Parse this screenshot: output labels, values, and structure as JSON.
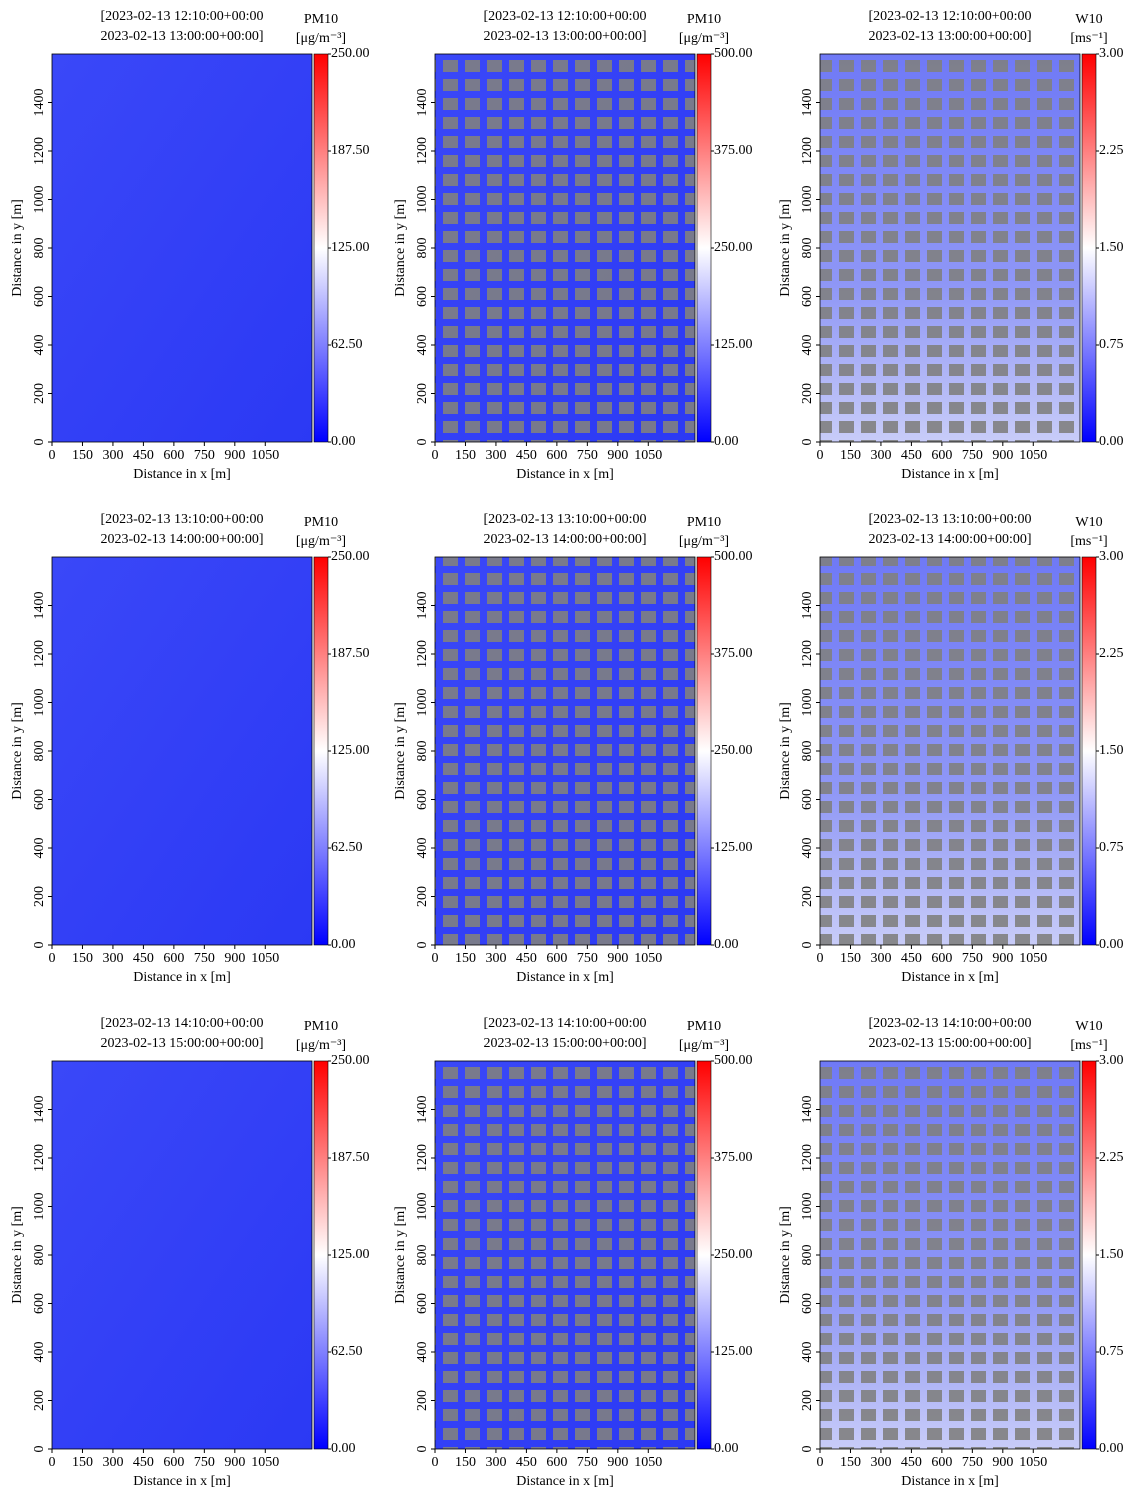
{
  "chart_data": [
    {
      "type": "heatmap",
      "title": [
        "[2023-02-13 12:10:00+00:00",
        "2023-02-13 13:00:00+00:00]"
      ],
      "xlabel": "Distance in x [m]",
      "ylabel": "Distance in y [m]",
      "xlim": [
        0,
        1280
      ],
      "ylim": [
        0,
        1600
      ],
      "xticks": [
        0,
        150,
        300,
        450,
        600,
        750,
        900,
        1050
      ],
      "yticks": [
        0,
        200,
        400,
        600,
        800,
        1000,
        1200,
        1400
      ],
      "colormap": [
        "#0000ff",
        "#ffffff",
        "#ff0000"
      ],
      "colorbar": {
        "label": "PM10",
        "unit": "[μg/m⁻³]",
        "lim": [
          0,
          250
        ],
        "ticks": [
          {
            "value": 0,
            "label": "0.00"
          },
          {
            "value": 62.5,
            "label": "62.50"
          },
          {
            "value": 125,
            "label": "125.00"
          },
          {
            "value": 187.5,
            "label": "187.50"
          },
          {
            "value": 250,
            "label": "250.00"
          }
        ]
      }
    },
    {
      "type": "heatmap",
      "title": [
        "[2023-02-13 12:10:00+00:00",
        "2023-02-13 13:00:00+00:00]"
      ],
      "xlabel": "Distance in x [m]",
      "ylabel": "Distance in y [m]",
      "xlim": [
        0,
        1280
      ],
      "ylim": [
        0,
        1600
      ],
      "xticks": [
        0,
        150,
        300,
        450,
        600,
        750,
        900,
        1050
      ],
      "yticks": [
        0,
        200,
        400,
        600,
        800,
        1000,
        1200,
        1400
      ],
      "colormap": [
        "#0000ff",
        "#ffffff",
        "#ff0000"
      ],
      "colorbar": {
        "label": "PM10",
        "unit": "[μg/m⁻³]",
        "lim": [
          0,
          500
        ],
        "ticks": [
          {
            "value": 0,
            "label": "0.00"
          },
          {
            "value": 125,
            "label": "125.00"
          },
          {
            "value": 250,
            "label": "250.00"
          },
          {
            "value": 375,
            "label": "375.00"
          },
          {
            "value": 500,
            "label": "500.00"
          }
        ]
      }
    },
    {
      "type": "heatmap",
      "title": [
        "[2023-02-13 12:10:00+00:00",
        "2023-02-13 13:00:00+00:00]"
      ],
      "xlabel": "Distance in x [m]",
      "ylabel": "Distance in y [m]",
      "xlim": [
        0,
        1280
      ],
      "ylim": [
        0,
        1600
      ],
      "xticks": [
        0,
        150,
        300,
        450,
        600,
        750,
        900,
        1050
      ],
      "yticks": [
        0,
        200,
        400,
        600,
        800,
        1000,
        1200,
        1400
      ],
      "colormap": [
        "#0000ff",
        "#ffffff",
        "#ff0000"
      ],
      "colorbar": {
        "label": "W10",
        "unit": "[ms⁻¹]",
        "lim": [
          0,
          3
        ],
        "ticks": [
          {
            "value": 0,
            "label": "0.00"
          },
          {
            "value": 0.75,
            "label": "0.75"
          },
          {
            "value": 1.5,
            "label": "1.50"
          },
          {
            "value": 2.25,
            "label": "2.25"
          },
          {
            "value": 3,
            "label": "3.00"
          }
        ]
      }
    },
    {
      "type": "heatmap",
      "title": [
        "[2023-02-13 13:10:00+00:00",
        "2023-02-13 14:00:00+00:00]"
      ],
      "xlabel": "Distance in x [m]",
      "ylabel": "Distance in y [m]",
      "xlim": [
        0,
        1280
      ],
      "ylim": [
        0,
        1600
      ],
      "xticks": [
        0,
        150,
        300,
        450,
        600,
        750,
        900,
        1050
      ],
      "yticks": [
        0,
        200,
        400,
        600,
        800,
        1000,
        1200,
        1400
      ],
      "colormap": [
        "#0000ff",
        "#ffffff",
        "#ff0000"
      ],
      "colorbar": {
        "label": "PM10",
        "unit": "[μg/m⁻³]",
        "lim": [
          0,
          250
        ],
        "ticks": [
          {
            "value": 0,
            "label": "0.00"
          },
          {
            "value": 62.5,
            "label": "62.50"
          },
          {
            "value": 125,
            "label": "125.00"
          },
          {
            "value": 187.5,
            "label": "187.50"
          },
          {
            "value": 250,
            "label": "250.00"
          }
        ]
      }
    },
    {
      "type": "heatmap",
      "title": [
        "[2023-02-13 13:10:00+00:00",
        "2023-02-13 14:00:00+00:00]"
      ],
      "xlabel": "Distance in x [m]",
      "ylabel": "Distance in y [m]",
      "xlim": [
        0,
        1280
      ],
      "ylim": [
        0,
        1600
      ],
      "xticks": [
        0,
        150,
        300,
        450,
        600,
        750,
        900,
        1050
      ],
      "yticks": [
        0,
        200,
        400,
        600,
        800,
        1000,
        1200,
        1400
      ],
      "colormap": [
        "#0000ff",
        "#ffffff",
        "#ff0000"
      ],
      "colorbar": {
        "label": "PM10",
        "unit": "[μg/m⁻³]",
        "lim": [
          0,
          500
        ],
        "ticks": [
          {
            "value": 0,
            "label": "0.00"
          },
          {
            "value": 125,
            "label": "125.00"
          },
          {
            "value": 250,
            "label": "250.00"
          },
          {
            "value": 375,
            "label": "375.00"
          },
          {
            "value": 500,
            "label": "500.00"
          }
        ]
      }
    },
    {
      "type": "heatmap",
      "title": [
        "[2023-02-13 13:10:00+00:00",
        "2023-02-13 14:00:00+00:00]"
      ],
      "xlabel": "Distance in x [m]",
      "ylabel": "Distance in y [m]",
      "xlim": [
        0,
        1280
      ],
      "ylim": [
        0,
        1600
      ],
      "xticks": [
        0,
        150,
        300,
        450,
        600,
        750,
        900,
        1050
      ],
      "yticks": [
        0,
        200,
        400,
        600,
        800,
        1000,
        1200,
        1400
      ],
      "colormap": [
        "#0000ff",
        "#ffffff",
        "#ff0000"
      ],
      "colorbar": {
        "label": "W10",
        "unit": "[ms⁻¹]",
        "lim": [
          0,
          3
        ],
        "ticks": [
          {
            "value": 0,
            "label": "0.00"
          },
          {
            "value": 0.75,
            "label": "0.75"
          },
          {
            "value": 1.5,
            "label": "1.50"
          },
          {
            "value": 2.25,
            "label": "2.25"
          },
          {
            "value": 3,
            "label": "3.00"
          }
        ]
      }
    },
    {
      "type": "heatmap",
      "title": [
        "[2023-02-13 14:10:00+00:00",
        "2023-02-13 15:00:00+00:00]"
      ],
      "xlabel": "Distance in x [m]",
      "ylabel": "Distance in y [m]",
      "xlim": [
        0,
        1280
      ],
      "ylim": [
        0,
        1600
      ],
      "xticks": [
        0,
        150,
        300,
        450,
        600,
        750,
        900,
        1050
      ],
      "yticks": [
        0,
        200,
        400,
        600,
        800,
        1000,
        1200,
        1400
      ],
      "colormap": [
        "#0000ff",
        "#ffffff",
        "#ff0000"
      ],
      "colorbar": {
        "label": "PM10",
        "unit": "[μg/m⁻³]",
        "lim": [
          0,
          250
        ],
        "ticks": [
          {
            "value": 0,
            "label": "0.00"
          },
          {
            "value": 62.5,
            "label": "62.50"
          },
          {
            "value": 125,
            "label": "125.00"
          },
          {
            "value": 187.5,
            "label": "187.50"
          },
          {
            "value": 250,
            "label": "250.00"
          }
        ]
      }
    },
    {
      "type": "heatmap",
      "title": [
        "[2023-02-13 14:10:00+00:00",
        "2023-02-13 15:00:00+00:00]"
      ],
      "xlabel": "Distance in x [m]",
      "ylabel": "Distance in y [m]",
      "xlim": [
        0,
        1280
      ],
      "ylim": [
        0,
        1600
      ],
      "xticks": [
        0,
        150,
        300,
        450,
        600,
        750,
        900,
        1050
      ],
      "yticks": [
        0,
        200,
        400,
        600,
        800,
        1000,
        1200,
        1400
      ],
      "colormap": [
        "#0000ff",
        "#ffffff",
        "#ff0000"
      ],
      "colorbar": {
        "label": "PM10",
        "unit": "[μg/m⁻³]",
        "lim": [
          0,
          500
        ],
        "ticks": [
          {
            "value": 0,
            "label": "0.00"
          },
          {
            "value": 125,
            "label": "125.00"
          },
          {
            "value": 250,
            "label": "250.00"
          },
          {
            "value": 375,
            "label": "375.00"
          },
          {
            "value": 500,
            "label": "500.00"
          }
        ]
      }
    },
    {
      "type": "heatmap",
      "title": [
        "[2023-02-13 14:10:00+00:00",
        "2023-02-13 15:00:00+00:00]"
      ],
      "xlabel": "Distance in x [m]",
      "ylabel": "Distance in y [m]",
      "xlim": [
        0,
        1280
      ],
      "ylim": [
        0,
        1600
      ],
      "xticks": [
        0,
        150,
        300,
        450,
        600,
        750,
        900,
        1050
      ],
      "yticks": [
        0,
        200,
        400,
        600,
        800,
        1000,
        1200,
        1400
      ],
      "colormap": [
        "#0000ff",
        "#ffffff",
        "#ff0000"
      ],
      "colorbar": {
        "label": "W10",
        "unit": "[ms⁻¹]",
        "lim": [
          0,
          3
        ],
        "ticks": [
          {
            "value": 0,
            "label": "0.00"
          },
          {
            "value": 0.75,
            "label": "0.75"
          },
          {
            "value": 1.5,
            "label": "1.50"
          },
          {
            "value": 2.25,
            "label": "2.25"
          },
          {
            "value": 3,
            "label": "3.00"
          }
        ]
      }
    }
  ]
}
